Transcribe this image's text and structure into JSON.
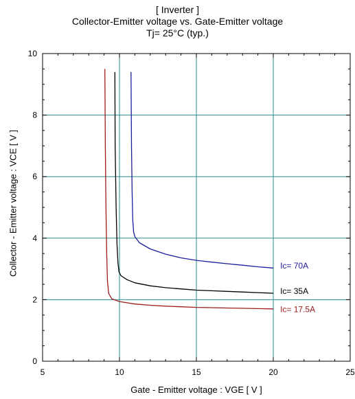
{
  "chart_data": {
    "type": "line",
    "title_lines": [
      "[ Inverter ]",
      "Collector-Emitter voltage  vs. Gate-Emitter voltage",
      "Tj= 25°C  (typ.)"
    ],
    "xlabel": "Gate - Emitter voltage  :  VGE  [ V ]",
    "ylabel": "Collector - Emitter voltage  :  VCE  [ V ]",
    "xlim": [
      5,
      25
    ],
    "ylim": [
      0,
      10
    ],
    "x_ticks": [
      5,
      10,
      15,
      20,
      25
    ],
    "y_ticks": [
      0,
      2,
      4,
      6,
      8,
      10
    ],
    "grid": true,
    "series": [
      {
        "name": "Ic= 70A",
        "color": "#1c1c9c",
        "points": [
          [
            10.75,
            9.4
          ],
          [
            10.78,
            7.0
          ],
          [
            10.82,
            5.5
          ],
          [
            10.86,
            4.6
          ],
          [
            10.92,
            4.2
          ],
          [
            11.0,
            4.05
          ],
          [
            11.3,
            3.85
          ],
          [
            12.0,
            3.65
          ],
          [
            13.0,
            3.48
          ],
          [
            14.0,
            3.36
          ],
          [
            15.0,
            3.28
          ],
          [
            16.0,
            3.22
          ],
          [
            17.0,
            3.17
          ],
          [
            18.0,
            3.12
          ],
          [
            19.0,
            3.07
          ],
          [
            20.0,
            3.03
          ]
        ]
      },
      {
        "name": "Ic= 35A",
        "color": "#000000",
        "points": [
          [
            9.7,
            9.4
          ],
          [
            9.72,
            7.0
          ],
          [
            9.78,
            5.0
          ],
          [
            9.84,
            3.8
          ],
          [
            9.9,
            3.2
          ],
          [
            9.97,
            2.9
          ],
          [
            10.1,
            2.78
          ],
          [
            10.5,
            2.65
          ],
          [
            11.0,
            2.55
          ],
          [
            12.0,
            2.45
          ],
          [
            13.0,
            2.39
          ],
          [
            14.0,
            2.35
          ],
          [
            15.0,
            2.31
          ],
          [
            16.0,
            2.29
          ],
          [
            17.0,
            2.27
          ],
          [
            18.0,
            2.25
          ],
          [
            19.0,
            2.23
          ],
          [
            20.0,
            2.21
          ]
        ]
      },
      {
        "name": "Ic= 17.5A",
        "color": "#9c1c1c",
        "points": [
          [
            9.05,
            9.5
          ],
          [
            9.08,
            7.0
          ],
          [
            9.12,
            5.0
          ],
          [
            9.17,
            3.5
          ],
          [
            9.22,
            2.6
          ],
          [
            9.3,
            2.2
          ],
          [
            9.5,
            2.03
          ],
          [
            10.0,
            1.94
          ],
          [
            11.0,
            1.86
          ],
          [
            12.0,
            1.82
          ],
          [
            13.0,
            1.79
          ],
          [
            14.0,
            1.77
          ],
          [
            15.0,
            1.75
          ],
          [
            16.0,
            1.74
          ],
          [
            17.0,
            1.73
          ],
          [
            18.0,
            1.72
          ],
          [
            19.0,
            1.71
          ],
          [
            20.0,
            1.7
          ]
        ]
      }
    ],
    "labels": [
      {
        "text": "Ic= 70A",
        "x": 20.45,
        "y": 3.1,
        "color": "#1c1c9c"
      },
      {
        "text": "Ic= 35A",
        "x": 20.45,
        "y": 2.28,
        "color": "#000000"
      },
      {
        "text": "Ic= 17.5A",
        "x": 20.45,
        "y": 1.68,
        "color": "#9c1c1c"
      }
    ],
    "grid_color": "#2a8c8c"
  }
}
